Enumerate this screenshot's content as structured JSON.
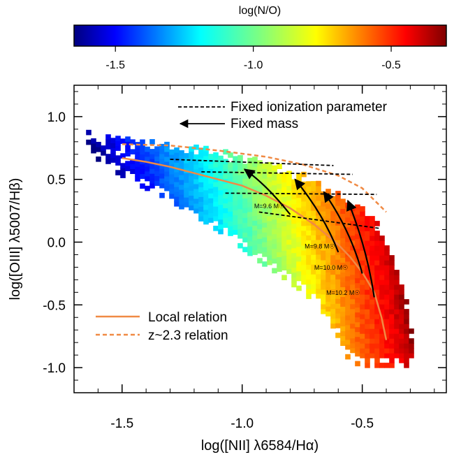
{
  "chart_data": {
    "type": "scatter",
    "colorbar": {
      "label": "log(N/O)",
      "range": [
        -1.65,
        -0.3
      ],
      "ticks": [
        -1.5,
        -1.0,
        -0.5
      ],
      "colormap": "jet"
    },
    "xlabel": "log([NII] λ6584/Hα)",
    "ylabel": "log([OIII] λ5007/Hβ)",
    "xlim": [
      -1.7,
      -0.15
    ],
    "ylim": [
      -1.2,
      1.25
    ],
    "xticks": [
      -1.5,
      -1.0,
      -0.5
    ],
    "yticks": [
      1.0,
      0.5,
      0.0,
      -0.5,
      -1.0
    ],
    "legend_top": {
      "dashed_label": "Fixed ionization parameter",
      "arrow_label": "Fixed mass"
    },
    "legend_bottom": {
      "local_label": "Local relation",
      "z_label": "z~2.3 relation",
      "color": "#f08a44"
    },
    "local_relation": [
      [
        -1.5,
        0.67
      ],
      [
        -1.4,
        0.64
      ],
      [
        -1.3,
        0.6
      ],
      [
        -1.2,
        0.55
      ],
      [
        -1.1,
        0.5
      ],
      [
        -1.0,
        0.45
      ],
      [
        -0.9,
        0.37
      ],
      [
        -0.8,
        0.27
      ],
      [
        -0.7,
        0.14
      ],
      [
        -0.6,
        -0.02
      ],
      [
        -0.55,
        -0.12
      ],
      [
        -0.5,
        -0.24
      ],
      [
        -0.45,
        -0.4
      ],
      [
        -0.42,
        -0.6
      ],
      [
        -0.4,
        -0.78
      ]
    ],
    "z23_relation": [
      [
        -1.5,
        0.78
      ],
      [
        -1.3,
        0.77
      ],
      [
        -1.1,
        0.73
      ],
      [
        -0.9,
        0.68
      ],
      [
        -0.75,
        0.62
      ],
      [
        -0.6,
        0.53
      ],
      [
        -0.5,
        0.43
      ],
      [
        -0.4,
        0.24
      ]
    ],
    "ionization_lines": [
      {
        "points": [
          [
            -1.3,
            0.66
          ],
          [
            -0.62,
            0.61
          ]
        ]
      },
      {
        "points": [
          [
            -1.17,
            0.56
          ],
          [
            -0.54,
            0.54
          ]
        ]
      },
      {
        "points": [
          [
            -1.07,
            0.39
          ],
          [
            -0.44,
            0.38
          ]
        ]
      },
      {
        "points": [
          [
            -0.93,
            0.24
          ],
          [
            -0.43,
            0.11
          ]
        ]
      }
    ],
    "mass_tracks": [
      {
        "label": "M=9.6 M☉",
        "label_at": [
          -0.95,
          0.27
        ],
        "points": [
          [
            -0.8,
            0.22
          ],
          [
            -0.9,
            0.46
          ],
          [
            -0.99,
            0.58
          ]
        ]
      },
      {
        "label": "M=9.8 M☉",
        "label_at": [
          -0.74,
          -0.05
        ],
        "points": [
          [
            -0.6,
            -0.08
          ],
          [
            -0.66,
            0.22
          ],
          [
            -0.78,
            0.5
          ]
        ]
      },
      {
        "label": "M=10.0 M☉",
        "label_at": [
          -0.7,
          -0.22
        ],
        "points": [
          [
            -0.5,
            -0.25
          ],
          [
            -0.55,
            0.1
          ],
          [
            -0.66,
            0.4
          ]
        ]
      },
      {
        "label": "M=10.2 M☉",
        "label_at": [
          -0.65,
          -0.42
        ],
        "points": [
          [
            -0.45,
            -0.44
          ],
          [
            -0.48,
            -0.05
          ],
          [
            -0.56,
            0.33
          ]
        ]
      }
    ],
    "scatter_cloud": {
      "upper_edge": [
        [
          -1.65,
          0.86
        ],
        [
          -1.55,
          0.83
        ],
        [
          -1.45,
          0.8
        ],
        [
          -1.35,
          0.78
        ],
        [
          -1.25,
          0.76
        ],
        [
          -1.15,
          0.73
        ],
        [
          -1.05,
          0.69
        ],
        [
          -0.95,
          0.64
        ],
        [
          -0.85,
          0.59
        ],
        [
          -0.75,
          0.52
        ],
        [
          -0.65,
          0.44
        ],
        [
          -0.55,
          0.32
        ],
        [
          -0.45,
          0.15
        ],
        [
          -0.38,
          -0.1
        ],
        [
          -0.33,
          -0.45
        ],
        [
          -0.3,
          -0.8
        ],
        [
          -0.29,
          -0.95
        ]
      ],
      "lower_edge": [
        [
          -1.65,
          0.7
        ],
        [
          -1.55,
          0.56
        ],
        [
          -1.45,
          0.45
        ],
        [
          -1.35,
          0.36
        ],
        [
          -1.25,
          0.25
        ],
        [
          -1.15,
          0.13
        ],
        [
          -1.05,
          0.0
        ],
        [
          -0.95,
          -0.15
        ],
        [
          -0.85,
          -0.28
        ],
        [
          -0.75,
          -0.42
        ],
        [
          -0.68,
          -0.55
        ],
        [
          -0.62,
          -0.72
        ],
        [
          -0.58,
          -0.92
        ],
        [
          -0.52,
          -1.0
        ],
        [
          -0.29,
          -1.0
        ]
      ],
      "count": 1400
    }
  }
}
